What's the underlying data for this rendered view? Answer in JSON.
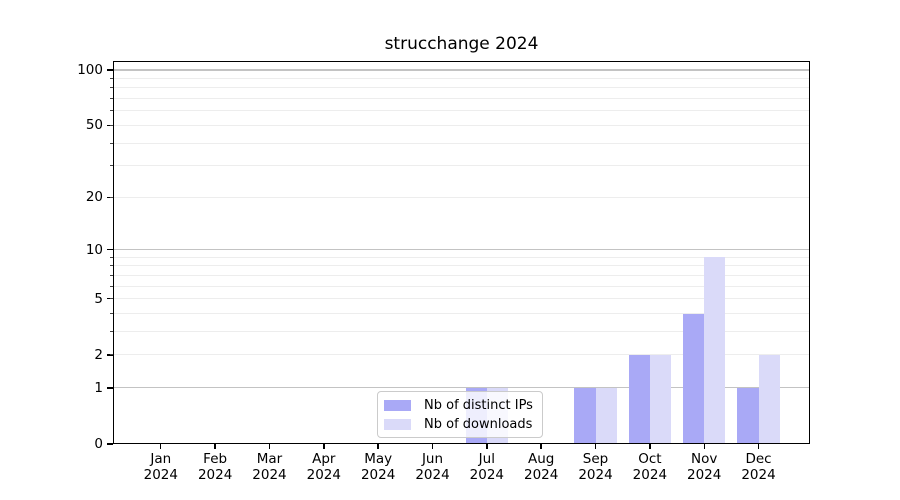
{
  "title": "strucchange 2024",
  "legend": {
    "items": [
      {
        "label": "Nb of distinct IPs",
        "color": "#a9a9f6"
      },
      {
        "label": "Nb of downloads",
        "color": "#dadaf9"
      }
    ]
  },
  "colors": {
    "background": "#ffffff",
    "axis": "#000000",
    "grid_minor": "#ededed",
    "grid_major": "#c3c3c3",
    "bar_distinct_ips": "#a9a9f6",
    "bar_downloads": "#dadaf9"
  },
  "chart_data": {
    "type": "bar",
    "title": "strucchange 2024",
    "categories": [
      "Jan 2024",
      "Feb 2024",
      "Mar 2024",
      "Apr 2024",
      "May 2024",
      "Jun 2024",
      "Jul 2024",
      "Aug 2024",
      "Sep 2024",
      "Oct 2024",
      "Nov 2024",
      "Dec 2024"
    ],
    "series": [
      {
        "name": "Nb of distinct IPs",
        "color": "#a9a9f6",
        "values": [
          0,
          0,
          0,
          0,
          0,
          0,
          1,
          0,
          1,
          2,
          4,
          1
        ]
      },
      {
        "name": "Nb of downloads",
        "color": "#dadaf9",
        "values": [
          0,
          0,
          0,
          0,
          0,
          0,
          1,
          0,
          1,
          2,
          9,
          2
        ]
      }
    ],
    "xlabel": "",
    "ylabel": "",
    "yscale": "log1p",
    "ylim": [
      0,
      112
    ],
    "y_ticks": [
      0,
      1,
      2,
      5,
      10,
      20,
      50,
      100
    ],
    "y_major_gridlines": [
      1,
      10,
      100
    ],
    "y_minor_gridlines": [
      2,
      3,
      4,
      5,
      6,
      7,
      8,
      9,
      20,
      30,
      40,
      50,
      60,
      70,
      80,
      90
    ],
    "grid": "horizontal only",
    "legend_position": "inside lower center"
  }
}
